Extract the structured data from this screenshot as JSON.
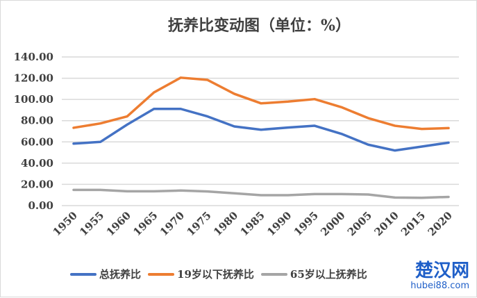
{
  "chart_data": {
    "type": "line",
    "title": "抚养比变动图（单位：%）",
    "x": [
      1950,
      1955,
      1960,
      1965,
      1970,
      1975,
      1980,
      1985,
      1990,
      1995,
      2000,
      2005,
      2010,
      2015,
      2020
    ],
    "ylim": [
      0,
      140
    ],
    "yticks": [
      "0.00",
      "20.00",
      "40.00",
      "60.00",
      "80.00",
      "100.00",
      "120.00",
      "140.00"
    ],
    "grid": true,
    "legend": "bottom",
    "series": [
      {
        "name": "总抚养比",
        "color": "#4472c4",
        "values": [
          58.4,
          60,
          76.3,
          91.1,
          91.1,
          84,
          74.6,
          71.5,
          73.5,
          75.2,
          67.6,
          57.4,
          51.9,
          55.6,
          59.3
        ]
      },
      {
        "name": "19岁以下抚养比",
        "color": "#ed7d31",
        "values": [
          73.3,
          77.4,
          84,
          106.6,
          120.5,
          118.4,
          105.3,
          96.3,
          98,
          100.3,
          92.7,
          82.4,
          75.2,
          72.2,
          73
        ]
      },
      {
        "name": "65岁以上抚养比",
        "color": "#a5a5a5",
        "values": [
          14.8,
          14.8,
          13.5,
          13.5,
          14.2,
          13.3,
          11.6,
          9.8,
          9.8,
          10.9,
          10.9,
          10.5,
          7.6,
          7.4,
          8.2
        ]
      }
    ]
  },
  "watermark": {
    "name": "楚汉网",
    "url": "hubei88.com"
  }
}
